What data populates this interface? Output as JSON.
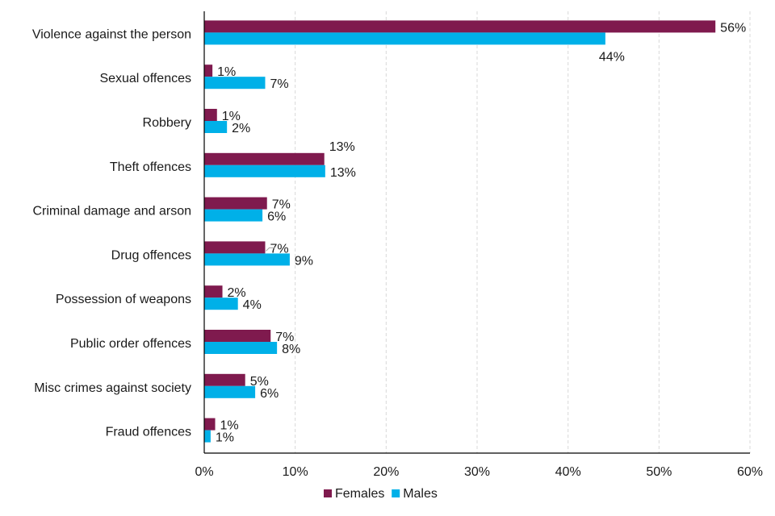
{
  "chart_data": {
    "type": "bar",
    "orientation": "horizontal",
    "title": "",
    "xlabel": "",
    "ylabel": "",
    "xlim": [
      0,
      60
    ],
    "x_ticks": [
      0,
      10,
      20,
      30,
      40,
      50,
      60
    ],
    "x_tick_labels": [
      "0%",
      "10%",
      "20%",
      "30%",
      "40%",
      "50%",
      "60%"
    ],
    "grid": true,
    "legend_position": "bottom",
    "categories": [
      "Violence against the person",
      "Sexual offences",
      "Robbery",
      "Theft offences",
      "Criminal damage and arson",
      "Drug offences",
      "Possession of weapons",
      "Public order offences",
      "Misc crimes against society",
      "Fraud offences"
    ],
    "series": [
      {
        "name": "Females",
        "color": "#7f1a4e",
        "values": [
          56.2,
          0.9,
          1.4,
          13.2,
          6.9,
          6.7,
          2.0,
          7.3,
          4.5,
          1.2
        ],
        "labels": [
          "56%",
          "1%",
          "1%",
          "13%",
          "7%",
          "7%",
          "2%",
          "7%",
          "5%",
          "1%"
        ]
      },
      {
        "name": "Males",
        "color": "#00b0e8",
        "values": [
          44.1,
          6.7,
          2.5,
          13.3,
          6.4,
          9.4,
          3.7,
          8.0,
          5.6,
          0.7
        ],
        "labels": [
          "44%",
          "7%",
          "2%",
          "13%",
          "6%",
          "9%",
          "4%",
          "8%",
          "6%",
          "1%"
        ]
      }
    ]
  }
}
